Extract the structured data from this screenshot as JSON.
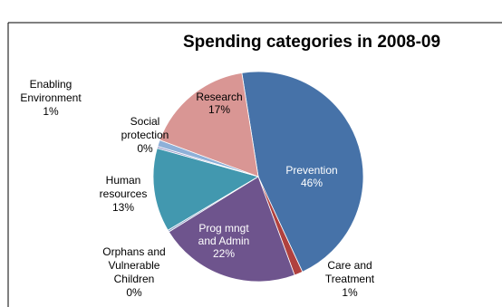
{
  "chart_data": {
    "type": "pie",
    "title": "Spending categories in 2008-09",
    "slices": [
      {
        "key": "prevention",
        "label": [
          "Prevention"
        ],
        "pct_label": "46%",
        "value": 46,
        "color": "#4672A8"
      },
      {
        "key": "care",
        "label": [
          "Care and",
          "Treatment"
        ],
        "pct_label": "1%",
        "value": 1.3,
        "color": "#B0413E"
      },
      {
        "key": "progmngt",
        "label": [
          "Prog mngt",
          "and Admin"
        ],
        "pct_label": "22%",
        "value": 22,
        "color": "#6E548D"
      },
      {
        "key": "orphans",
        "label": [
          "Orphans and",
          "Vulnerable",
          "Children"
        ],
        "pct_label": "0%",
        "value": 0.3,
        "color": "#8EA5CB"
      },
      {
        "key": "human",
        "label": [
          "Human",
          "resources"
        ],
        "pct_label": "13%",
        "value": 13,
        "color": "#4298AF"
      },
      {
        "key": "social",
        "label": [
          "Social",
          "protection"
        ],
        "pct_label": "0%",
        "value": 0.3,
        "color": "#A0A0CC"
      },
      {
        "key": "enabling",
        "label": [
          "Enabling",
          "Environment"
        ],
        "pct_label": "1%",
        "value": 1,
        "color": "#8EB0D8"
      },
      {
        "key": "research",
        "label": [
          "Research"
        ],
        "pct_label": "17%",
        "value": 17,
        "color": "#D99694"
      }
    ]
  }
}
